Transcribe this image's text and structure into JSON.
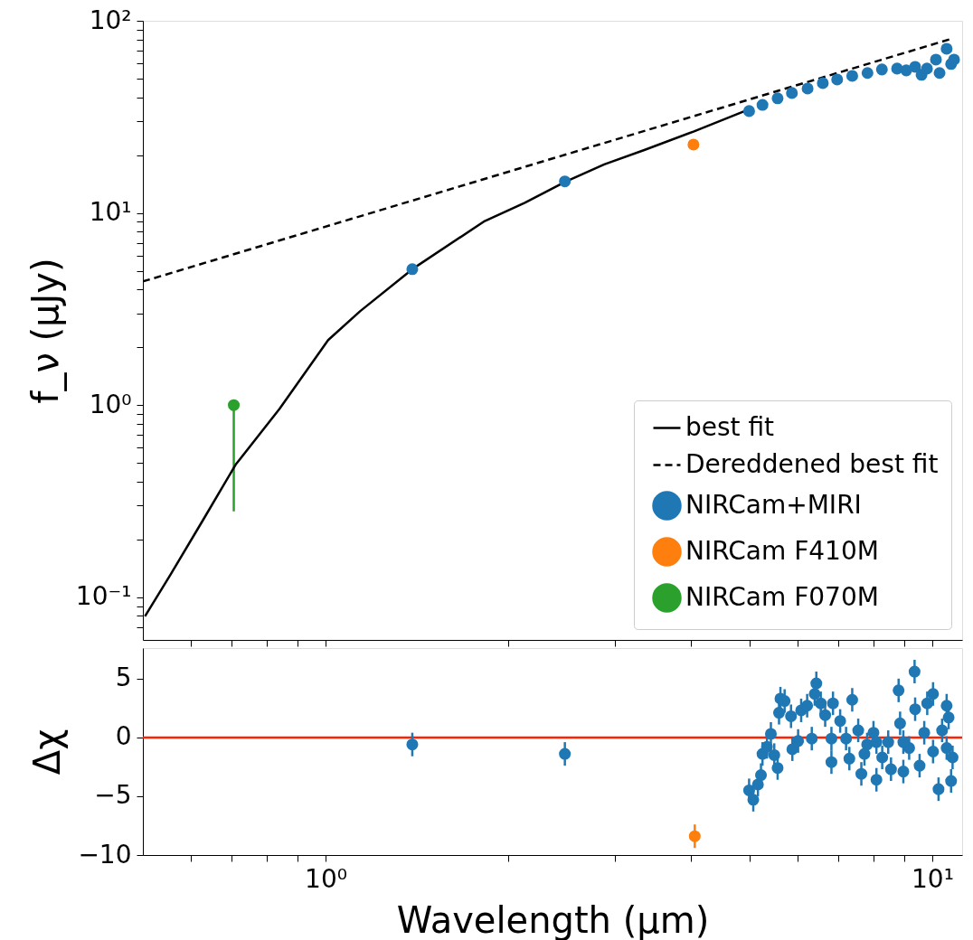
{
  "chart_data": [
    {
      "type": "line",
      "ylabel": "f_ν (μJy)",
      "log": "xy",
      "grid": false,
      "legend": "bottom right",
      "tick_labels": "y",
      "xlim": [
        0.5,
        11.2
      ],
      "ylim": [
        0.06,
        100
      ],
      "xticks": [
        {
          "value": 0.6,
          "label": null
        },
        {
          "value": 0.7,
          "label": null
        },
        {
          "value": 0.8,
          "label": null
        },
        {
          "value": 0.9,
          "label": null
        },
        {
          "value": 1,
          "label": null
        },
        {
          "value": 2,
          "label": null
        },
        {
          "value": 3,
          "label": null
        },
        {
          "value": 4,
          "label": null
        },
        {
          "value": 5,
          "label": null
        },
        {
          "value": 6,
          "label": null
        },
        {
          "value": 7,
          "label": null
        },
        {
          "value": 8,
          "label": null
        },
        {
          "value": 9,
          "label": null
        },
        {
          "value": 10,
          "label": null
        }
      ],
      "yticks": [
        {
          "value": 0.07,
          "label": null
        },
        {
          "value": 0.08,
          "label": null
        },
        {
          "value": 0.09,
          "label": null
        },
        {
          "value": 0.1,
          "label": "10⁻¹"
        },
        {
          "value": 0.2,
          "label": null
        },
        {
          "value": 0.3,
          "label": null
        },
        {
          "value": 0.4,
          "label": null
        },
        {
          "value": 0.5,
          "label": null
        },
        {
          "value": 0.6,
          "label": null
        },
        {
          "value": 0.7,
          "label": null
        },
        {
          "value": 0.8,
          "label": null
        },
        {
          "value": 0.9,
          "label": null
        },
        {
          "value": 1,
          "label": "10⁰"
        },
        {
          "value": 2,
          "label": null
        },
        {
          "value": 3,
          "label": null
        },
        {
          "value": 4,
          "label": null
        },
        {
          "value": 5,
          "label": null
        },
        {
          "value": 6,
          "label": null
        },
        {
          "value": 7,
          "label": null
        },
        {
          "value": 8,
          "label": null
        },
        {
          "value": 9,
          "label": null
        },
        {
          "value": 10,
          "label": "10¹"
        },
        {
          "value": 20,
          "label": null
        },
        {
          "value": 30,
          "label": null
        },
        {
          "value": 40,
          "label": null
        },
        {
          "value": 50,
          "label": null
        },
        {
          "value": 60,
          "label": null
        },
        {
          "value": 70,
          "label": null
        },
        {
          "value": 80,
          "label": null
        },
        {
          "value": 90,
          "label": null
        },
        {
          "value": 100,
          "label": "10²"
        }
      ],
      "series": [
        {
          "name": "best fit",
          "line_style": "solid",
          "color": "#000000",
          "x": [
            0.504,
            0.556,
            0.629,
            0.711,
            0.84,
            1.01,
            1.14,
            1.4,
            1.83,
            2.13,
            2.48,
            2.88,
            3.36,
            4.04,
            4.95
          ],
          "values": [
            0.0797,
            0.132,
            0.254,
            0.49,
            0.957,
            2.18,
            3.08,
            5.18,
            9.08,
            11.3,
            14.5,
            17.9,
            21.3,
            26.5,
            34.3
          ]
        },
        {
          "name": "Dereddened best fit",
          "line_style": "dashed",
          "color": "#000000",
          "x": [
            0.5,
            10.74
          ],
          "values": [
            4.4,
            80.5
          ]
        },
        {
          "name": "NIRCam+MIRI",
          "type": "scatter",
          "marker": "circle",
          "color": "#1f77b4",
          "x": [
            1.39,
            2.48,
            4.99,
            5.25,
            5.56,
            5.87,
            6.23,
            6.6,
            6.97,
            7.38,
            7.82,
            8.26,
            8.75,
            9.06,
            9.37,
            9.6,
            9.8,
            10.14,
            10.28,
            10.56,
            10.74,
            10.86
          ],
          "values": [
            5.1,
            14.6,
            33.9,
            36.5,
            39.5,
            42.1,
            44.4,
            47.4,
            49.5,
            51.7,
            53.5,
            55.8,
            56.4,
            55.2,
            57.6,
            52.3,
            56.4,
            62.8,
            53.5,
            71.5,
            59.6,
            62.8
          ]
        },
        {
          "name": "NIRCam F410M",
          "type": "scatter",
          "marker": "circle",
          "color": "#ff7f0e",
          "x": [
            4.04
          ],
          "values": [
            22.7
          ]
        },
        {
          "name": "NIRCam F070M",
          "type": "scatter",
          "marker": "circle",
          "color": "#2ca02c",
          "x": [
            0.706
          ],
          "values": [
            1.0
          ],
          "errors": [
            [
              0.28,
              1.0
            ]
          ]
        }
      ]
    },
    {
      "type": "scatter",
      "xlabel": "Wavelength (μm)",
      "ylabel": "Δχ",
      "log": "x",
      "grid": false,
      "legend": false,
      "xlim": [
        0.5,
        11.2
      ],
      "ylim": [
        -10,
        7.6
      ],
      "xticks": [
        {
          "value": 0.6,
          "label": null
        },
        {
          "value": 0.7,
          "label": null
        },
        {
          "value": 0.8,
          "label": null
        },
        {
          "value": 0.9,
          "label": null
        },
        {
          "value": 1,
          "label": "10⁰"
        },
        {
          "value": 2,
          "label": null
        },
        {
          "value": 3,
          "label": null
        },
        {
          "value": 4,
          "label": null
        },
        {
          "value": 5,
          "label": null
        },
        {
          "value": 6,
          "label": null
        },
        {
          "value": 7,
          "label": null
        },
        {
          "value": 8,
          "label": null
        },
        {
          "value": 9,
          "label": null
        },
        {
          "value": 10,
          "label": "10¹"
        }
      ],
      "yticks": [
        -10,
        -5,
        0,
        5
      ],
      "ref_lines": [
        {
          "axis": "y",
          "value": 0,
          "color": "#ff2200"
        }
      ],
      "series": [
        {
          "marker": "circle",
          "color": "#1f77b4",
          "x": [
            1.39,
            2.48,
            4.99,
            5.07,
            5.16,
            5.22,
            5.25,
            5.34,
            5.42,
            5.49,
            5.56,
            5.62,
            5.59,
            5.71,
            5.85,
            5.88,
            6.01,
            6.08,
            6.22,
            6.33,
            6.4,
            6.44,
            6.55,
            6.66,
            6.82,
            6.86,
            6.82,
            7.05,
            7.21,
            7.3,
            7.38,
            7.55,
            7.64,
            7.81,
            8.0,
            8.09,
            8.27,
            8.46,
            8.55,
            8.8,
            8.85,
            8.96,
            9.16,
            9.35,
            9.37,
            9.53,
            9.7,
            9.81,
            10.03,
            10.03,
            10.24,
            10.38,
            10.56,
            10.64,
            10.74,
            10.8,
            10.56,
            8.96,
            8.09,
            7.73
          ],
          "values": [
            -0.6,
            -1.4,
            -4.5,
            -5.3,
            -4.0,
            -3.2,
            -1.4,
            -0.8,
            0.3,
            -1.5,
            -2.6,
            3.3,
            2.1,
            3.1,
            1.8,
            -1.0,
            -0.3,
            2.3,
            2.7,
            -0.1,
            3.7,
            4.6,
            2.9,
            1.9,
            -0.1,
            2.9,
            -2.1,
            1.4,
            -0.1,
            -1.8,
            3.2,
            0.6,
            -3.1,
            -0.6,
            0.4,
            -3.6,
            -1.7,
            -0.4,
            -2.7,
            4.0,
            1.2,
            -2.9,
            -0.9,
            5.6,
            2.4,
            -2.4,
            0.4,
            2.9,
            3.7,
            -1.2,
            -4.4,
            0.6,
            2.7,
            1.7,
            -3.7,
            -1.7,
            -0.9,
            -0.4,
            -0.4,
            -1.4
          ],
          "errors": [
            1,
            1,
            1,
            1,
            1,
            1,
            1,
            1,
            1,
            1,
            1,
            1,
            1,
            1,
            1,
            1,
            1,
            1,
            1,
            1,
            1,
            1,
            1,
            1,
            1,
            1,
            1,
            1,
            1,
            1,
            1,
            1,
            1,
            1,
            1,
            1,
            1,
            1,
            1,
            1,
            1,
            1,
            1,
            1,
            1,
            1,
            1,
            1,
            1,
            1,
            1,
            1,
            1,
            1,
            1,
            1,
            1,
            1,
            1,
            1
          ]
        },
        {
          "marker": "circle",
          "color": "#ff7f0e",
          "x": [
            4.06
          ],
          "values": [
            -8.4
          ],
          "errors": [
            1
          ]
        }
      ]
    }
  ]
}
